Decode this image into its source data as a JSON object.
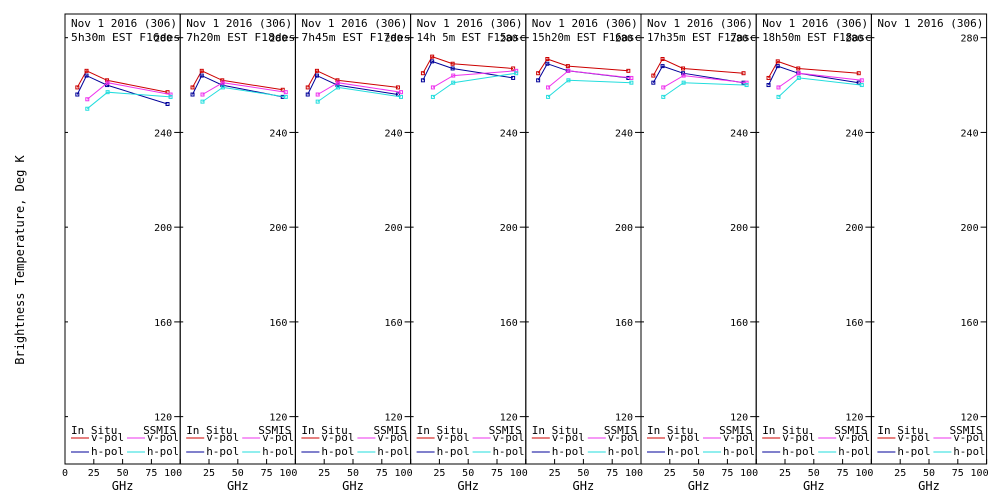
{
  "chart_data": {
    "type": "line",
    "ylabel": "Brightness Temperature, Deg K",
    "xlabel": "GHz",
    "ylim": [
      100,
      290
    ],
    "xlim": [
      0,
      100
    ],
    "yticks": [
      120,
      160,
      200,
      240,
      280
    ],
    "xticks": [
      0,
      25,
      50,
      75,
      100
    ],
    "xtick_labels": [
      "0",
      "25",
      "50",
      "75",
      "100"
    ],
    "grid": false,
    "legend": {
      "placement": "bottom",
      "groups": [
        "In Situ",
        "SSMIS"
      ],
      "entries": [
        "v-pol",
        "h-pol"
      ]
    },
    "colors": {
      "insitu_v": "#cc0000",
      "insitu_h": "#000099",
      "ssmis_v": "#ee33ee",
      "ssmis_h": "#22dddd"
    },
    "panels": [
      {
        "title1": "Nov 1 2016 (306)",
        "title2": "5h30m EST F16des",
        "series": [
          {
            "name": "In Situ v-pol",
            "key": "insitu_v",
            "x": [
              10.7,
              18.7,
              36.5,
              89.0
            ],
            "y": [
              259,
              266,
              262,
              257
            ]
          },
          {
            "name": "In Situ h-pol",
            "key": "insitu_h",
            "x": [
              10.7,
              18.7,
              36.5,
              89.0
            ],
            "y": [
              256,
              264,
              260,
              252
            ]
          },
          {
            "name": "SSMIS v-pol",
            "key": "ssmis_v",
            "x": [
              19.35,
              37.0,
              91.65
            ],
            "y": [
              254,
              261,
              256
            ]
          },
          {
            "name": "SSMIS h-pol",
            "key": "ssmis_h",
            "x": [
              19.35,
              37.0,
              91.65
            ],
            "y": [
              250,
              257,
              255
            ]
          }
        ]
      },
      {
        "title1": "Nov 1 2016 (306)",
        "title2": "7h20m EST F18des",
        "series": [
          {
            "name": "In Situ v-pol",
            "key": "insitu_v",
            "x": [
              10.7,
              18.7,
              36.5,
              89.0
            ],
            "y": [
              259,
              266,
              262,
              258
            ]
          },
          {
            "name": "In Situ h-pol",
            "key": "insitu_h",
            "x": [
              10.7,
              18.7,
              36.5,
              89.0
            ],
            "y": [
              256,
              264,
              260,
              255
            ]
          },
          {
            "name": "SSMIS v-pol",
            "key": "ssmis_v",
            "x": [
              19.35,
              37.0,
              91.65
            ],
            "y": [
              256,
              261,
              257
            ]
          },
          {
            "name": "SSMIS h-pol",
            "key": "ssmis_h",
            "x": [
              19.35,
              37.0,
              91.65
            ],
            "y": [
              253,
              259,
              255
            ]
          }
        ]
      },
      {
        "title1": "Nov 1 2016 (306)",
        "title2": "7h45m EST F17des",
        "series": [
          {
            "name": "In Situ v-pol",
            "key": "insitu_v",
            "x": [
              10.7,
              18.7,
              36.5,
              89.0
            ],
            "y": [
              259,
              266,
              262,
              259
            ]
          },
          {
            "name": "In Situ h-pol",
            "key": "insitu_h",
            "x": [
              10.7,
              18.7,
              36.5,
              89.0
            ],
            "y": [
              256,
              264,
              260,
              256
            ]
          },
          {
            "name": "SSMIS v-pol",
            "key": "ssmis_v",
            "x": [
              19.35,
              37.0,
              91.65
            ],
            "y": [
              256,
              261,
              257
            ]
          },
          {
            "name": "SSMIS h-pol",
            "key": "ssmis_h",
            "x": [
              19.35,
              37.0,
              91.65
            ],
            "y": [
              253,
              259,
              255
            ]
          }
        ]
      },
      {
        "title1": "Nov 1 2016 (306)",
        "title2": "14h 5m EST F15asc",
        "series": [
          {
            "name": "In Situ v-pol",
            "key": "insitu_v",
            "x": [
              10.7,
              18.7,
              36.5,
              89.0
            ],
            "y": [
              265,
              272,
              269,
              267
            ]
          },
          {
            "name": "In Situ h-pol",
            "key": "insitu_h",
            "x": [
              10.7,
              18.7,
              36.5,
              89.0
            ],
            "y": [
              262,
              270,
              267,
              263
            ]
          },
          {
            "name": "SSMIS v-pol",
            "key": "ssmis_v",
            "x": [
              19.35,
              37.0,
              91.65
            ],
            "y": [
              259,
              264,
              266
            ]
          },
          {
            "name": "SSMIS h-pol",
            "key": "ssmis_h",
            "x": [
              19.35,
              37.0,
              91.65
            ],
            "y": [
              255,
              261,
              265
            ]
          }
        ]
      },
      {
        "title1": "Nov 1 2016 (306)",
        "title2": "15h20m EST F16asc",
        "series": [
          {
            "name": "In Situ v-pol",
            "key": "insitu_v",
            "x": [
              10.7,
              18.7,
              36.5,
              89.0
            ],
            "y": [
              265,
              271,
              268,
              266
            ]
          },
          {
            "name": "In Situ h-pol",
            "key": "insitu_h",
            "x": [
              10.7,
              18.7,
              36.5,
              89.0
            ],
            "y": [
              262,
              269,
              266,
              263
            ]
          },
          {
            "name": "SSMIS v-pol",
            "key": "ssmis_v",
            "x": [
              19.35,
              37.0,
              91.65
            ],
            "y": [
              259,
              266,
              263
            ]
          },
          {
            "name": "SSMIS h-pol",
            "key": "ssmis_h",
            "x": [
              19.35,
              37.0,
              91.65
            ],
            "y": [
              255,
              262,
              261
            ]
          }
        ]
      },
      {
        "title1": "Nov 1 2016 (306)",
        "title2": "17h35m EST F17asc",
        "series": [
          {
            "name": "In Situ v-pol",
            "key": "insitu_v",
            "x": [
              10.7,
              18.7,
              36.5,
              89.0
            ],
            "y": [
              264,
              271,
              267,
              265
            ]
          },
          {
            "name": "In Situ h-pol",
            "key": "insitu_h",
            "x": [
              10.7,
              18.7,
              36.5,
              89.0
            ],
            "y": [
              261,
              268,
              265,
              261
            ]
          },
          {
            "name": "SSMIS v-pol",
            "key": "ssmis_v",
            "x": [
              19.35,
              37.0,
              91.65
            ],
            "y": [
              259,
              264,
              261
            ]
          },
          {
            "name": "SSMIS h-pol",
            "key": "ssmis_h",
            "x": [
              19.35,
              37.0,
              91.65
            ],
            "y": [
              255,
              261,
              260
            ]
          }
        ]
      },
      {
        "title1": "Nov 1 2016 (306)",
        "title2": "18h50m EST F18asc",
        "series": [
          {
            "name": "In Situ v-pol",
            "key": "insitu_v",
            "x": [
              10.7,
              18.7,
              36.5,
              89.0
            ],
            "y": [
              263,
              270,
              267,
              265
            ]
          },
          {
            "name": "In Situ h-pol",
            "key": "insitu_h",
            "x": [
              10.7,
              18.7,
              36.5,
              89.0
            ],
            "y": [
              260,
              268,
              265,
              261
            ]
          },
          {
            "name": "SSMIS v-pol",
            "key": "ssmis_v",
            "x": [
              19.35,
              37.0,
              91.65
            ],
            "y": [
              259,
              265,
              262
            ]
          },
          {
            "name": "SSMIS h-pol",
            "key": "ssmis_h",
            "x": [
              19.35,
              37.0,
              91.65
            ],
            "y": [
              255,
              263,
              260
            ]
          }
        ]
      },
      {
        "title1": "Nov 1 2016 (306)",
        "title2": "",
        "series": []
      }
    ]
  }
}
